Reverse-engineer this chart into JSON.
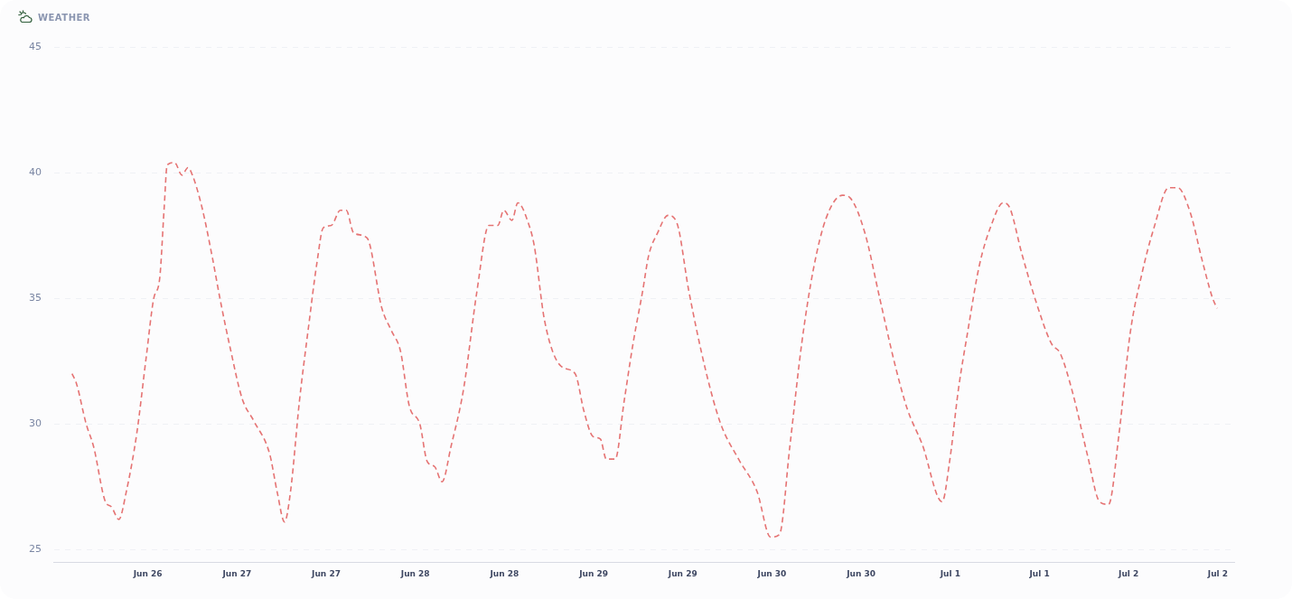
{
  "chart_data": {
    "type": "line",
    "title": "WEATHER",
    "x": [
      "--06-26T01:48",
      "--06-26T02:24",
      "--06-26T03:42",
      "--06-26T04:42",
      "--06-26T06:18",
      "--06-26T07:06",
      "--06-26T08:06",
      "--06-26T09:06",
      "--06-26T10:30",
      "--06-26T11:48",
      "--06-26T12:48",
      "--06-26T13:36",
      "--06-26T14:12",
      "--06-26T14:36",
      "--06-26T15:36",
      "--06-26T16:36",
      "--06-26T17:24",
      "--06-26T18:00",
      "--06-26T19:18",
      "--06-26T20:42",
      "--06-26T21:42",
      "--06-26T23:06",
      "--06-27T00:42",
      "--06-27T02:18",
      "--06-27T04:24",
      "--06-27T05:24",
      "--06-27T06:24",
      "--06-27T07:12",
      "--06-27T08:24",
      "--06-27T09:36",
      "--06-27T10:48",
      "--06-27T11:36",
      "--06-27T12:42",
      "--06-27T13:54",
      "--06-27T14:42",
      "--06-27T15:42",
      "--06-27T17:30",
      "--06-27T19:30",
      "--06-27T20:48",
      "--06-27T22:00",
      "--06-27T23:12",
      "--06-28T00:36",
      "--06-28T01:36",
      "--06-28T02:36",
      "--06-28T03:36",
      "--06-28T04:48",
      "--06-28T06:30",
      "--06-28T08:18",
      "--06-28T09:54",
      "--06-28T11:06",
      "--06-28T11:54",
      "--06-28T13:00",
      "--06-28T13:48",
      "--06-28T15:12",
      "--06-28T16:00",
      "--06-28T17:24",
      "--06-28T19:36",
      "--06-28T21:30",
      "--06-28T22:42",
      "--06-28T23:54",
      "--06-29T00:54",
      "--06-29T01:42",
      "--06-29T02:54",
      "--06-29T04:06",
      "--06-29T05:18",
      "--06-29T06:36",
      "--06-29T07:24",
      "--06-29T08:36",
      "--06-29T10:00",
      "--06-29T11:12",
      "--06-29T12:48",
      "--06-29T15:06",
      "--06-29T17:06",
      "--06-29T19:30",
      "--06-29T22:00",
      "--06-29T23:48",
      "--06-30T01:00",
      "--06-30T02:24",
      "--06-30T04:00",
      "--06-30T05:36",
      "--06-30T07:18",
      "--06-30T09:30",
      "--06-30T10:30",
      "--06-30T12:30",
      "--06-30T14:30",
      "--06-30T16:36",
      "--06-30T18:12",
      "--06-30T20:12",
      "--06-30T22:54",
      "--06-30T23:54",
      "--07-01T01:06",
      "--07-01T02:18",
      "--07-01T03:54",
      "--07-01T05:30",
      "--07-01T07:06",
      "--07-01T08:00",
      "--07-01T09:36",
      "--07-01T11:36",
      "--07-01T13:36",
      "--07-01T14:48",
      "--07-01T16:30",
      "--07-01T18:30",
      "--07-01T20:06",
      "--07-01T21:18",
      "--07-01T22:42",
      "--07-02T00:12",
      "--07-02T01:48",
      "--07-02T03:24",
      "--07-02T05:24",
      "--07-02T06:36",
      "--07-02T08:18",
      "--07-02T09:54",
      "--07-02T11:18",
      "--07-02T11:54"
    ],
    "series": [
      {
        "color": "#e57373",
        "values": [
          32.0,
          31.6,
          30.0,
          29.1,
          26.9,
          26.7,
          26.2,
          27.3,
          29.6,
          32.7,
          35.0,
          35.8,
          38.6,
          40.3,
          40.4,
          39.9,
          40.2,
          39.9,
          38.6,
          36.6,
          35.0,
          33.0,
          31.0,
          30.1,
          28.8,
          27.3,
          26.1,
          27.3,
          30.9,
          33.8,
          36.5,
          37.8,
          37.9,
          38.5,
          38.5,
          37.6,
          37.4,
          34.6,
          33.7,
          32.9,
          30.7,
          30.0,
          28.5,
          28.3,
          27.7,
          29.1,
          31.4,
          35.3,
          37.9,
          37.9,
          38.5,
          38.1,
          38.8,
          38.0,
          37.1,
          34.1,
          32.3,
          32.0,
          30.5,
          29.5,
          29.4,
          28.6,
          28.6,
          30.9,
          33.2,
          35.3,
          36.7,
          37.6,
          38.3,
          38.0,
          35.3,
          32.1,
          30.0,
          28.6,
          27.3,
          25.5,
          25.6,
          29.1,
          33.2,
          36.2,
          38.2,
          39.1,
          39.0,
          37.6,
          35.0,
          32.3,
          30.6,
          29.2,
          26.9,
          28.5,
          31.4,
          33.6,
          36.3,
          37.9,
          38.8,
          38.6,
          36.8,
          34.8,
          33.2,
          32.8,
          31.2,
          28.7,
          26.9,
          26.8,
          29.6,
          33.6,
          36.0,
          37.8,
          39.4,
          39.4,
          38.4,
          36.5,
          35.0,
          34.6
        ]
      }
    ],
    "xlim": [
      "--06-25T23:24",
      "--07-02T14:12"
    ],
    "xticks": [
      {
        "value": "--06-26T12:00",
        "label": "Jun 26"
      },
      {
        "value": "--06-27T00:00",
        "label": "Jun 27"
      },
      {
        "value": "--06-27T12:00",
        "label": "Jun 27"
      },
      {
        "value": "--06-28T00:00",
        "label": "Jun 28"
      },
      {
        "value": "--06-28T12:00",
        "label": "Jun 28"
      },
      {
        "value": "--06-29T00:00",
        "label": "Jun 29"
      },
      {
        "value": "--06-29T12:00",
        "label": "Jun 29"
      },
      {
        "value": "--06-30T00:00",
        "label": "Jun 30"
      },
      {
        "value": "--06-30T12:00",
        "label": "Jun 30"
      },
      {
        "value": "--07-01T00:00",
        "label": "Jul 1"
      },
      {
        "value": "--07-01T12:00",
        "label": "Jul 1"
      },
      {
        "value": "--07-02T00:00",
        "label": "Jul 2"
      },
      {
        "value": "--07-02T12:00",
        "label": "Jul 2"
      }
    ],
    "ylim": [
      24.5,
      45
    ],
    "yticks": [
      25,
      30,
      35,
      40,
      45
    ],
    "grid": "y",
    "marker": "none",
    "line_style": "dashed"
  }
}
